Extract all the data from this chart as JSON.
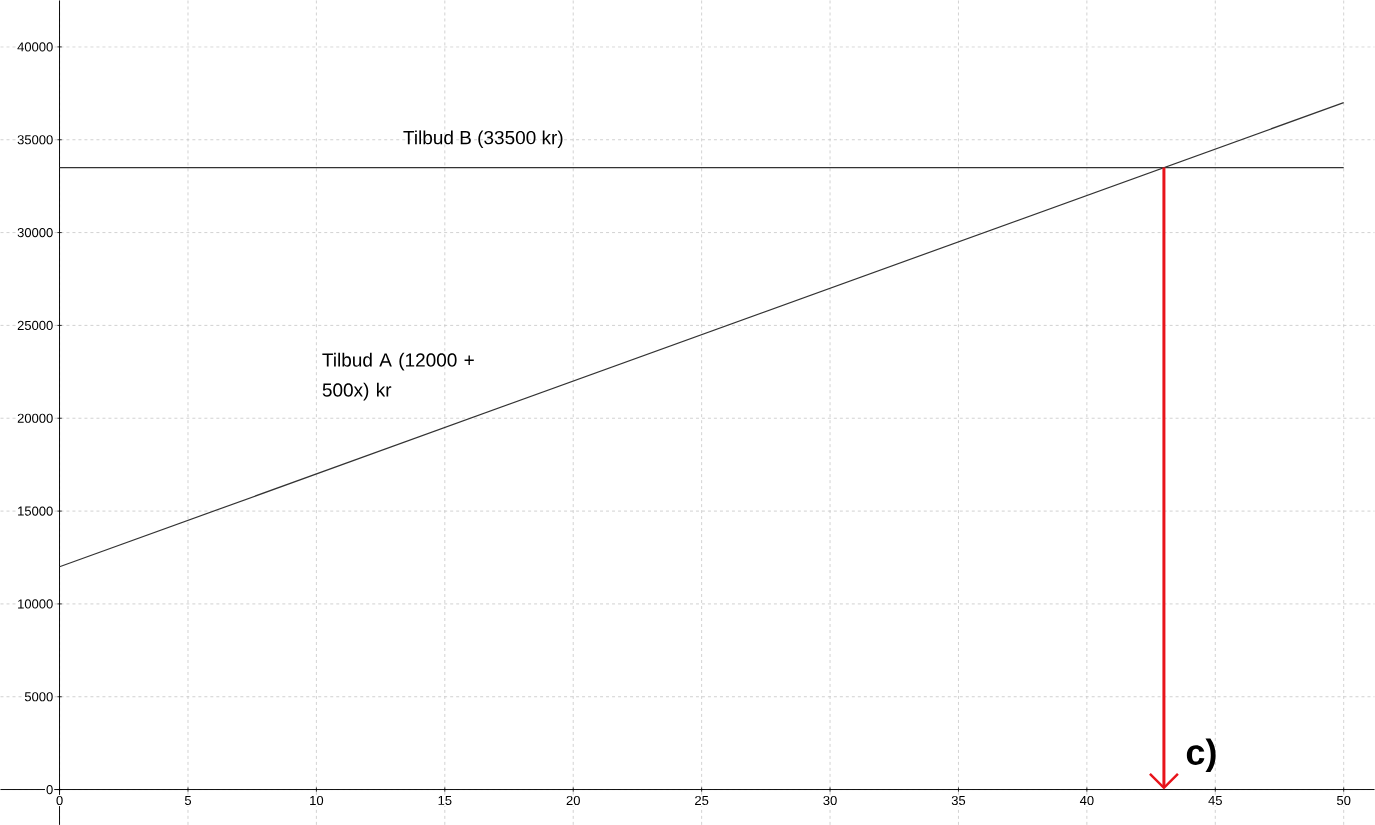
{
  "chart_data": {
    "type": "line",
    "xlim": [
      -2.3,
      51.2
    ],
    "ylim": [
      -1900,
      42500
    ],
    "xticks": [
      0,
      5,
      10,
      15,
      20,
      25,
      30,
      35,
      40,
      45,
      50
    ],
    "yticks": [
      0,
      5000,
      10000,
      15000,
      20000,
      25000,
      30000,
      35000,
      40000
    ],
    "grid": true,
    "series": [
      {
        "name": "Tilbud A (12000 + 500x) kr",
        "color": "#333333",
        "x": [
          0,
          50
        ],
        "values": [
          12000,
          37000
        ]
      },
      {
        "name": "Tilbud B (33500 kr)",
        "color": "#333333",
        "x": [
          0,
          50
        ],
        "values": [
          33500,
          33500
        ]
      },
      {
        "color": "#e8141b",
        "x": [
          43,
          43
        ],
        "values": [
          33500,
          0
        ]
      }
    ],
    "annotations": [
      {
        "text": "c)",
        "x": 43,
        "y": 0
      }
    ]
  }
}
